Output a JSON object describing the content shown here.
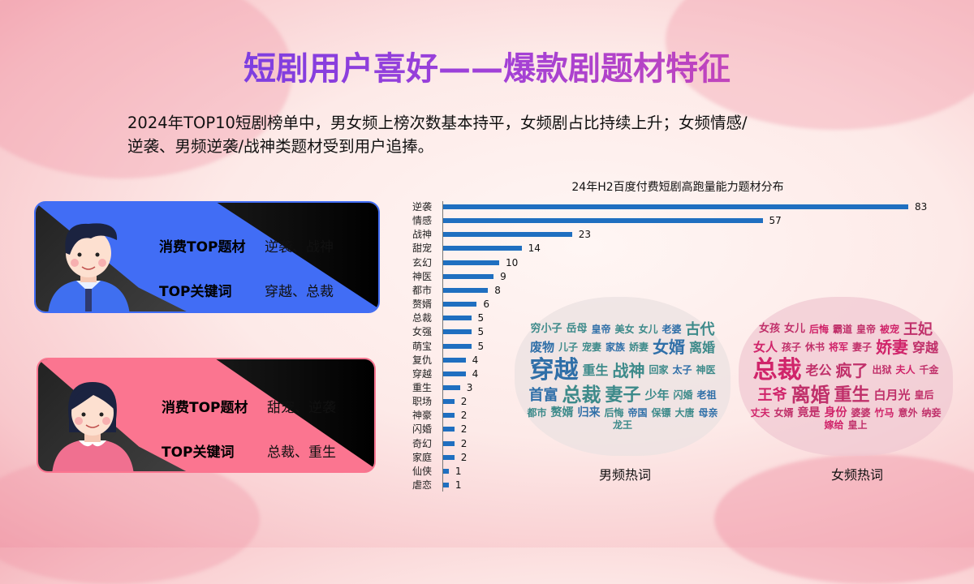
{
  "title": "短剧用户喜好——爆款剧题材特征",
  "subtitle_line1": "2024年TOP10短剧榜单中，男女频上榜次数基本持平，女频剧占比持续上升；女频情感/",
  "subtitle_line2": "逆袭、男频逆袭/战神类题材受到用户追捧。",
  "cards": [
    {
      "audience": "male",
      "color": "#416df5",
      "topic_label": "消费TOP题材",
      "topic_value": "逆袭、战神",
      "keyword_label": "TOP关键词",
      "keyword_value": "穿越、总裁"
    },
    {
      "audience": "female",
      "color": "#fb7590",
      "topic_label": "消费TOP题材",
      "topic_value": "甜宠、逆袭",
      "keyword_label": "TOP关键词",
      "keyword_value": "总裁、重生"
    }
  ],
  "chart_data": {
    "type": "bar",
    "orientation": "horizontal",
    "title": "24年H2百度付费短剧高跑量能力题材分布",
    "categories": [
      "逆袭",
      "情感",
      "战神",
      "甜宠",
      "玄幻",
      "神医",
      "都市",
      "赘婿",
      "总裁",
      "女强",
      "萌宝",
      "复仇",
      "穿越",
      "重生",
      "职场",
      "神豪",
      "闪婚",
      "奇幻",
      "家庭",
      "仙侠",
      "虐恋"
    ],
    "values": [
      83,
      57,
      23,
      14,
      10,
      9,
      8,
      6,
      5,
      5,
      5,
      4,
      4,
      3,
      2,
      2,
      2,
      2,
      2,
      1,
      1
    ],
    "bar_color": "#1f6fc0",
    "data_labels": true
  },
  "wordclouds": [
    {
      "caption": "男频热词",
      "color": "#3d8a8a",
      "words": [
        "穿越",
        "总裁",
        "妻子",
        "女婿",
        "战神",
        "古代",
        "首富",
        "离婚",
        "重生",
        "废物",
        "少年",
        "赘婿",
        "归来",
        "穷小子",
        "岳母",
        "皇帝",
        "美女",
        "女儿",
        "老婆",
        "儿子",
        "宠妻",
        "家族",
        "娇妻",
        "回家",
        "太子",
        "神医",
        "闪婚",
        "老祖",
        "都市",
        "后悔",
        "帝国",
        "保镖",
        "大唐",
        "母亲",
        "龙王"
      ]
    },
    {
      "caption": "女频热词",
      "color": "#c0306a",
      "words": [
        "总裁",
        "离婚",
        "重生",
        "娇妻",
        "疯了",
        "王妃",
        "王爷",
        "穿越",
        "老公",
        "女人",
        "白月光",
        "竟是",
        "身份",
        "女孩",
        "女儿",
        "后悔",
        "霸道",
        "皇帝",
        "被宠",
        "孩子",
        "休书",
        "将军",
        "妻子",
        "出狱",
        "夫人",
        "千金",
        "皇后",
        "丈夫",
        "女婿",
        "婆婆",
        "竹马",
        "意外",
        "纳妾",
        "嫁给",
        "皇上"
      ]
    }
  ]
}
